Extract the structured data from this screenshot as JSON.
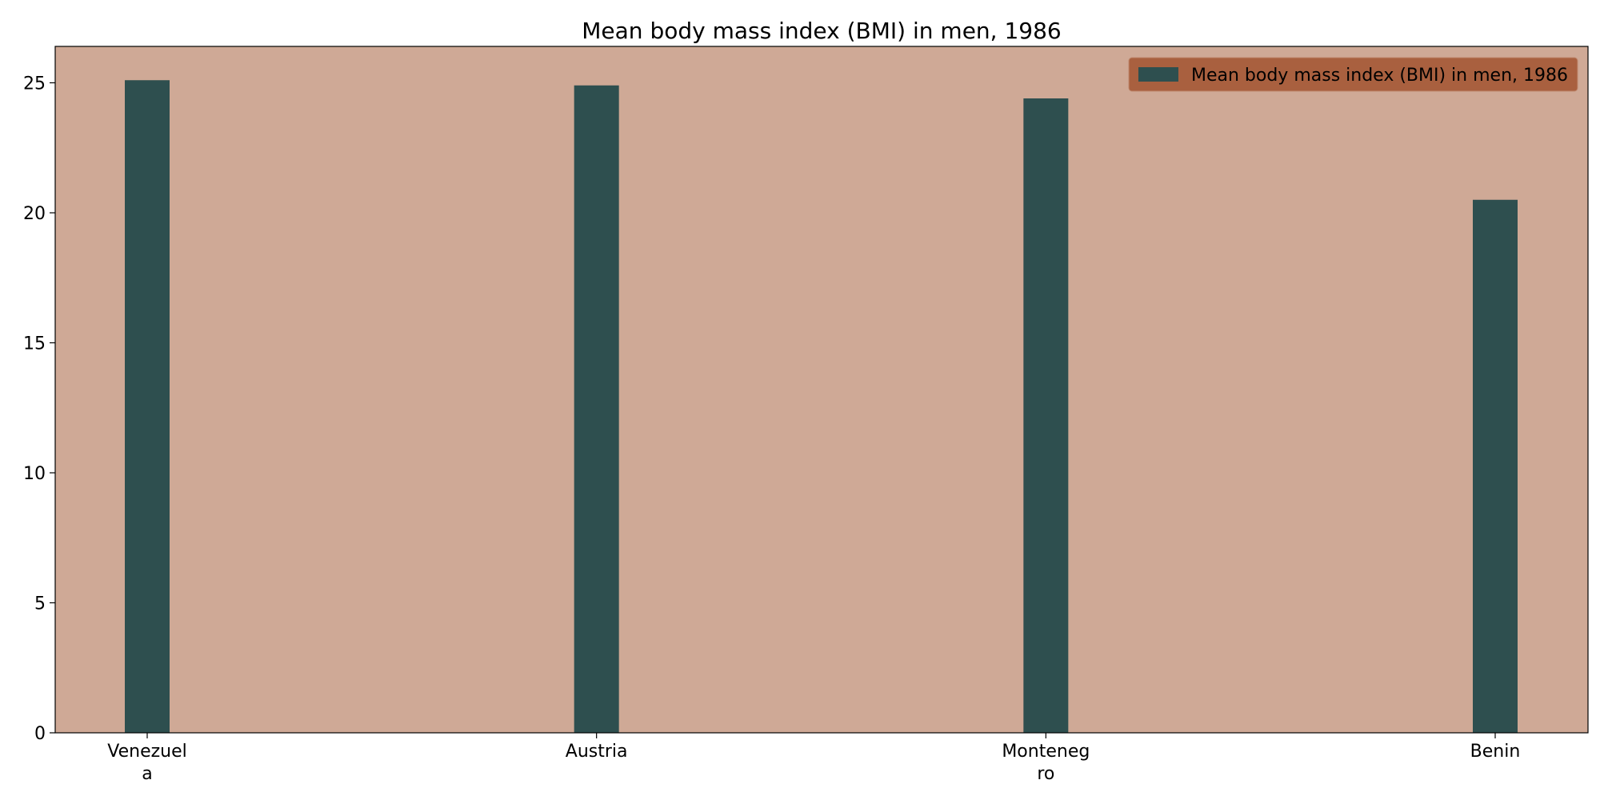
{
  "chart_data": {
    "type": "bar",
    "title": "Mean body mass index (BMI) in men, 1986",
    "xlabel": "",
    "ylabel": "",
    "categories": [
      "Venezuela",
      "Austria",
      "Montenegro",
      "Benin"
    ],
    "category_tick_labels": [
      [
        "Venezuel",
        "a"
      ],
      [
        "Austria"
      ],
      [
        "Monteneg",
        "ro"
      ],
      [
        "Benin"
      ]
    ],
    "series": [
      {
        "name": "Mean body mass index (BMI) in men, 1986",
        "values": [
          25.1,
          24.9,
          24.4,
          20.5
        ]
      }
    ],
    "ylim": [
      0,
      26.4
    ],
    "yticks": [
      0,
      5,
      10,
      15,
      20,
      25
    ],
    "grid": false,
    "legend_position": "top-right",
    "colors": {
      "plot_background": "#cfa996",
      "bar": "#2e4f4f",
      "legend_background": "#a9603f",
      "axis": "#000000"
    }
  }
}
